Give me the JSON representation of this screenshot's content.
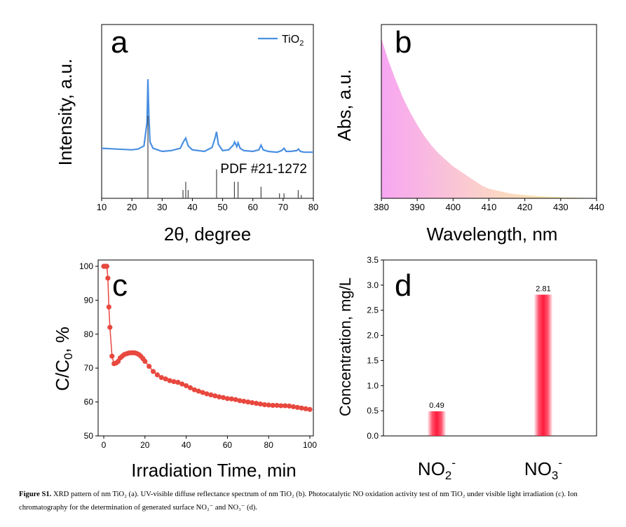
{
  "caption": {
    "label": "Figure S1.",
    "text": "XRD pattern of nm TiO₂ (a). UV-visible diffuse reflectance spectrum of nm TiO₂ (b). Photocatalytic NO oxidation activity test of nm TiO₂ under visible light irradiation (c). Ion chromatography for the determination of generated surface NO₂⁻ and NO₃⁻ (d)."
  },
  "chart_data": [
    {
      "panel": "a",
      "type": "line",
      "xlabel": "2θ, degree",
      "ylabel": "Intensity, a.u.",
      "xlim": [
        10,
        80
      ],
      "xticks": [
        10,
        20,
        30,
        40,
        50,
        60,
        70,
        80
      ],
      "legend": "top-right",
      "series": [
        {
          "name": "TiO₂",
          "color": "#4a90e2",
          "x": [
            10,
            15,
            20,
            22,
            24,
            25,
            25.3,
            25.6,
            26,
            27,
            30,
            33,
            36,
            37,
            37.8,
            38.6,
            40,
            44,
            46.5,
            47.5,
            48,
            48.6,
            50,
            52,
            53.5,
            54,
            54.7,
            55.1,
            55.8,
            57,
            60,
            62,
            62.7,
            63.4,
            65,
            68,
            69.5,
            70.3,
            71,
            72.5,
            74.5,
            75.1,
            75.7,
            77,
            80
          ],
          "y": [
            0.12,
            0.11,
            0.1,
            0.11,
            0.15,
            0.45,
            1.0,
            0.55,
            0.2,
            0.12,
            0.08,
            0.09,
            0.12,
            0.2,
            0.25,
            0.15,
            0.1,
            0.08,
            0.13,
            0.25,
            0.33,
            0.17,
            0.09,
            0.1,
            0.16,
            0.2,
            0.14,
            0.19,
            0.12,
            0.09,
            0.08,
            0.1,
            0.16,
            0.1,
            0.08,
            0.07,
            0.09,
            0.12,
            0.08,
            0.08,
            0.09,
            0.11,
            0.08,
            0.07,
            0.07
          ]
        }
      ],
      "reference": {
        "label": "PDF #21-1272",
        "x": [
          25.3,
          36.9,
          37.8,
          38.6,
          48.0,
          53.9,
          55.1,
          62.7,
          68.8,
          70.3,
          75.0,
          76.0
        ],
        "y": [
          100,
          10,
          20,
          10,
          35,
          20,
          20,
          14,
          6,
          6,
          10,
          4
        ]
      }
    },
    {
      "panel": "b",
      "type": "area",
      "xlabel": "Wavelength, nm",
      "ylabel": "Abs, a.u.",
      "xlim": [
        380,
        440
      ],
      "xticks": [
        380,
        390,
        400,
        410,
        420,
        430,
        440
      ],
      "x": [
        380,
        382,
        384,
        386,
        388,
        390,
        392,
        394,
        396,
        398,
        400,
        402,
        404,
        406,
        408,
        410,
        413,
        416,
        420,
        425,
        430,
        435,
        440
      ],
      "y": [
        1.0,
        0.86,
        0.74,
        0.63,
        0.54,
        0.46,
        0.39,
        0.33,
        0.28,
        0.24,
        0.2,
        0.17,
        0.14,
        0.11,
        0.08,
        0.06,
        0.045,
        0.03,
        0.02,
        0.012,
        0.006,
        0.003,
        0.0
      ]
    },
    {
      "panel": "c",
      "type": "scatter",
      "xlabel": "Irradiation Time, min",
      "ylabel": "C/C₀, %",
      "xlim": [
        0,
        100
      ],
      "ylim": [
        50,
        100
      ],
      "xticks": [
        0,
        20,
        40,
        60,
        80,
        100
      ],
      "yticks": [
        50,
        60,
        70,
        80,
        90,
        100
      ],
      "color": "#e8483f",
      "x": [
        0,
        0.5,
        1,
        1.5,
        2,
        2.5,
        3,
        4,
        5,
        6,
        7,
        8,
        9,
        10,
        11,
        12,
        13,
        14,
        15,
        16,
        17,
        18,
        19,
        20,
        22,
        24,
        26,
        28,
        30,
        32,
        34,
        36,
        38,
        40,
        42,
        44,
        46,
        48,
        50,
        52,
        54,
        56,
        58,
        60,
        62,
        64,
        66,
        68,
        70,
        72,
        74,
        76,
        78,
        80,
        82,
        84,
        86,
        88,
        90,
        92,
        94,
        96,
        98,
        100
      ],
      "y": [
        100,
        100,
        100,
        100,
        96.5,
        88,
        82,
        73.5,
        71.3,
        71.5,
        72,
        73,
        73.5,
        74,
        74.2,
        74.4,
        74.5,
        74.5,
        74.5,
        74.3,
        74,
        73.5,
        72.8,
        72,
        70.5,
        69,
        68,
        67.2,
        66.8,
        66.3,
        66,
        65.8,
        65.3,
        64.8,
        64.2,
        63.6,
        63.2,
        62.8,
        62.4,
        62.1,
        61.8,
        61.5,
        61.3,
        61,
        60.9,
        60.7,
        60.4,
        60.2,
        60,
        59.8,
        59.6,
        59.4,
        59.2,
        59.1,
        59,
        59,
        58.9,
        58.9,
        58.8,
        58.6,
        58.4,
        58.2,
        58,
        57.8
      ]
    },
    {
      "panel": "d",
      "type": "bar",
      "xlabel": "",
      "ylabel": "Concentration, mg/L",
      "ylim": [
        0,
        3.5
      ],
      "yticks": [
        "0.0",
        "0.5",
        "1.0",
        "1.5",
        "2.0",
        "2.5",
        "3.0",
        "3.5"
      ],
      "categories": [
        {
          "base": "NO",
          "sub": "2",
          "sup": "-"
        },
        {
          "base": "NO",
          "sub": "3",
          "sup": "-"
        }
      ],
      "values": [
        0.49,
        2.81
      ],
      "value_labels": [
        "0.49",
        "2.81"
      ],
      "color": "#ff1a3c"
    }
  ]
}
